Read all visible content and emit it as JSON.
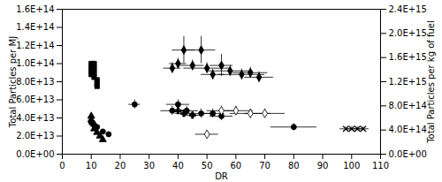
{
  "chart_data": {
    "type": "scatter",
    "xlabel": "DR",
    "ylabel": "Total Particles per MJ",
    "y2label": "Total Particles per kg of fuel",
    "xlim": [
      0,
      110
    ],
    "ylim": [
      0,
      160000000000000.0
    ],
    "y2lim": [
      0,
      2400000000000000.0
    ],
    "xticks": [
      0,
      10,
      20,
      30,
      40,
      50,
      60,
      70,
      80,
      90,
      100,
      110
    ],
    "yticks": [
      {
        "value": 0,
        "label": "0.0E+00"
      },
      {
        "value": 20000000000000.0,
        "label": "2.0E+13"
      },
      {
        "value": 40000000000000.0,
        "label": "4.0E+13"
      },
      {
        "value": 60000000000000.0,
        "label": "6.0E+13"
      },
      {
        "value": 80000000000000.0,
        "label": "8.0E+13"
      },
      {
        "value": 100000000000000.0,
        "label": "1.0E+14"
      },
      {
        "value": 120000000000000.0,
        "label": "1.2E+14"
      },
      {
        "value": 140000000000000.0,
        "label": "1.4E+14"
      },
      {
        "value": 160000000000000.0,
        "label": "1.6E+14"
      }
    ],
    "y2ticks": [
      {
        "value": 0,
        "label": "0.0E+00"
      },
      {
        "value": 400000000000000.0,
        "label": "4.0E+14"
      },
      {
        "value": 800000000000000.0,
        "label": "8.0E+14"
      },
      {
        "value": 1200000000000000.0,
        "label": "1.2E+15"
      },
      {
        "value": 1600000000000000.0,
        "label": "1.6E+15"
      },
      {
        "value": 2000000000000000.0,
        "label": "2.0E+15"
      },
      {
        "value": 2400000000000000.0,
        "label": "2.4E+15"
      }
    ],
    "grid": false,
    "series": [
      {
        "marker": "diamond",
        "color": "black",
        "x": [
          38,
          40,
          42,
          45,
          48,
          50,
          52,
          55,
          58,
          62,
          65,
          68
        ],
        "values": [
          95000000000000.0,
          100000000000000.0,
          115000000000000.0,
          98000000000000.0,
          115000000000000.0,
          95000000000000.0,
          88000000000000.0,
          98000000000000.0,
          92000000000000.0,
          88000000000000.0,
          90000000000000.0,
          85000000000000.0
        ],
        "xerr": [
          3,
          3,
          4,
          4,
          5,
          8,
          4,
          4,
          8,
          8,
          6,
          5
        ],
        "yerr": [
          6000000000000.0,
          6000000000000.0,
          15000000000000.0,
          6000000000000.0,
          15000000000000.0,
          6000000000000.0,
          6000000000000.0,
          12000000000000.0,
          6000000000000.0,
          6000000000000.0,
          6000000000000.0,
          6000000000000.0
        ]
      },
      {
        "marker": "square",
        "color": "black",
        "x": [
          10,
          10,
          10,
          10,
          11,
          11,
          11,
          11,
          12,
          12,
          12
        ],
        "values": [
          100000000000000.0,
          95000000000000.0,
          92000000000000.0,
          88000000000000.0,
          100000000000000.0,
          95000000000000.0,
          90000000000000.0,
          85000000000000.0,
          82000000000000.0,
          78000000000000.0,
          75000000000000.0
        ],
        "xerr": [
          0.3,
          0.3,
          0.3,
          0.3,
          0.3,
          0.3,
          0.3,
          0.3,
          0.3,
          0.3,
          0.3
        ],
        "yerr": [
          2000000000000.0,
          2000000000000.0,
          2000000000000.0,
          2000000000000.0,
          2000000000000.0,
          2000000000000.0,
          2000000000000.0,
          2000000000000.0,
          2000000000000.0,
          2000000000000.0,
          2000000000000.0
        ]
      },
      {
        "marker": "circle",
        "color": "black",
        "x": [
          10,
          11,
          12,
          14,
          16,
          25,
          38,
          40,
          43,
          48,
          52,
          55,
          80
        ],
        "values": [
          35000000000000.0,
          32000000000000.0,
          30000000000000.0,
          25000000000000.0,
          22000000000000.0,
          55000000000000.0,
          48000000000000.0,
          55000000000000.0,
          48000000000000.0,
          45000000000000.0,
          45000000000000.0,
          42000000000000.0,
          30000000000000.0
        ],
        "xerr": [
          0.5,
          0.5,
          0.5,
          0.5,
          0.5,
          2,
          4,
          4,
          4,
          4,
          4,
          4,
          8
        ],
        "yerr": [
          2000000000000.0,
          2000000000000.0,
          2000000000000.0,
          2000000000000.0,
          2000000000000.0,
          5000000000000.0,
          5000000000000.0,
          5000000000000.0,
          5000000000000.0,
          5000000000000.0,
          5000000000000.0,
          5000000000000.0,
          4000000000000.0
        ]
      },
      {
        "marker": "triangle",
        "color": "black",
        "x": [
          10,
          10,
          11,
          11,
          12,
          13,
          14
        ],
        "values": [
          42000000000000.0,
          38000000000000.0,
          33000000000000.0,
          28000000000000.0,
          24000000000000.0,
          20000000000000.0,
          16000000000000.0
        ],
        "xerr": [
          0.3,
          0.3,
          0.3,
          0.3,
          0.3,
          0.3,
          0.3
        ],
        "yerr": [
          2000000000000.0,
          2000000000000.0,
          2000000000000.0,
          2000000000000.0,
          2000000000000.0,
          2000000000000.0,
          2000000000000.0
        ]
      },
      {
        "marker": "plus",
        "color": "black",
        "x": [
          40,
          42,
          45
        ],
        "values": [
          48000000000000.0,
          45000000000000.0,
          43000000000000.0
        ],
        "xerr": [
          3,
          3,
          3
        ],
        "yerr": [
          4000000000000.0,
          4000000000000.0,
          4000000000000.0
        ]
      },
      {
        "marker": "open_diamond",
        "color": "black",
        "x": [
          50,
          55,
          60,
          65,
          70
        ],
        "values": [
          22000000000000.0,
          48000000000000.0,
          48000000000000.0,
          45000000000000.0,
          45000000000000.0
        ],
        "xerr": [
          4,
          5,
          6,
          7,
          7
        ],
        "yerr": [
          3000000000000.0,
          5000000000000.0,
          5000000000000.0,
          5000000000000.0,
          5000000000000.0
        ]
      },
      {
        "marker": "x",
        "color": "black",
        "x": [
          98,
          100,
          102,
          104
        ],
        "values": [
          28000000000000.0,
          28000000000000.0,
          28000000000000.0,
          28000000000000.0
        ],
        "xerr": [
          2,
          2,
          2,
          2
        ],
        "yerr": [
          2000000000000.0,
          2000000000000.0,
          2000000000000.0,
          2000000000000.0
        ]
      }
    ]
  }
}
